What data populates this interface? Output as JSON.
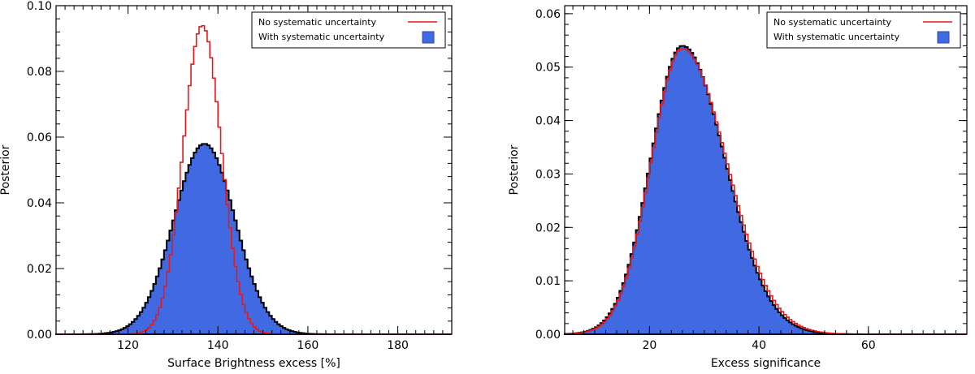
{
  "chart_data": [
    {
      "type": "histogram",
      "xlabel": "Surface Brightness excess [%]",
      "ylabel": "Posterior",
      "xlim": [
        104,
        192
      ],
      "ylim": [
        0,
        0.1
      ],
      "xticks": [
        120,
        140,
        160,
        180
      ],
      "yticks": [
        0.0,
        0.02,
        0.04,
        0.06,
        0.08,
        0.1
      ],
      "ytick_labels": [
        "0.00",
        "0.02",
        "0.04",
        "0.06",
        "0.08",
        "0.10"
      ],
      "legend_position": "top-right",
      "series": [
        {
          "name": "No systematic uncertainty",
          "style": "step-line",
          "color": "#e31a1c",
          "distribution": {
            "mean": 136.5,
            "sigma": 4.25,
            "peak": 0.094,
            "skew": 0
          }
        },
        {
          "name": "With systematic uncertainty",
          "style": "filled-step",
          "color": "#4169e1",
          "distribution": {
            "mean": 137.0,
            "sigma": 6.8,
            "peak": 0.058,
            "skew": 0
          }
        }
      ]
    },
    {
      "type": "histogram",
      "xlabel": "Excess significance",
      "ylabel": "Posterior",
      "xlim": [
        4.5,
        78
      ],
      "ylim": [
        0,
        0.0615
      ],
      "xticks": [
        20,
        40,
        60
      ],
      "yticks": [
        0.0,
        0.01,
        0.02,
        0.03,
        0.04,
        0.05,
        0.06
      ],
      "ytick_labels": [
        "0.00",
        "0.01",
        "0.02",
        "0.03",
        "0.04",
        "0.05",
        "0.06"
      ],
      "legend_position": "top-right",
      "series": [
        {
          "name": "No systematic uncertainty",
          "style": "step-line",
          "color": "#e31a1c",
          "distribution": {
            "mean": 26.0,
            "sigma": 6.9,
            "peak": 0.0535,
            "skew": 0.35
          }
        },
        {
          "name": "With systematic uncertainty",
          "style": "filled-step",
          "color": "#4169e1",
          "distribution": {
            "mean": 26.0,
            "sigma": 6.8,
            "peak": 0.054,
            "skew": 0.3
          }
        }
      ]
    }
  ]
}
